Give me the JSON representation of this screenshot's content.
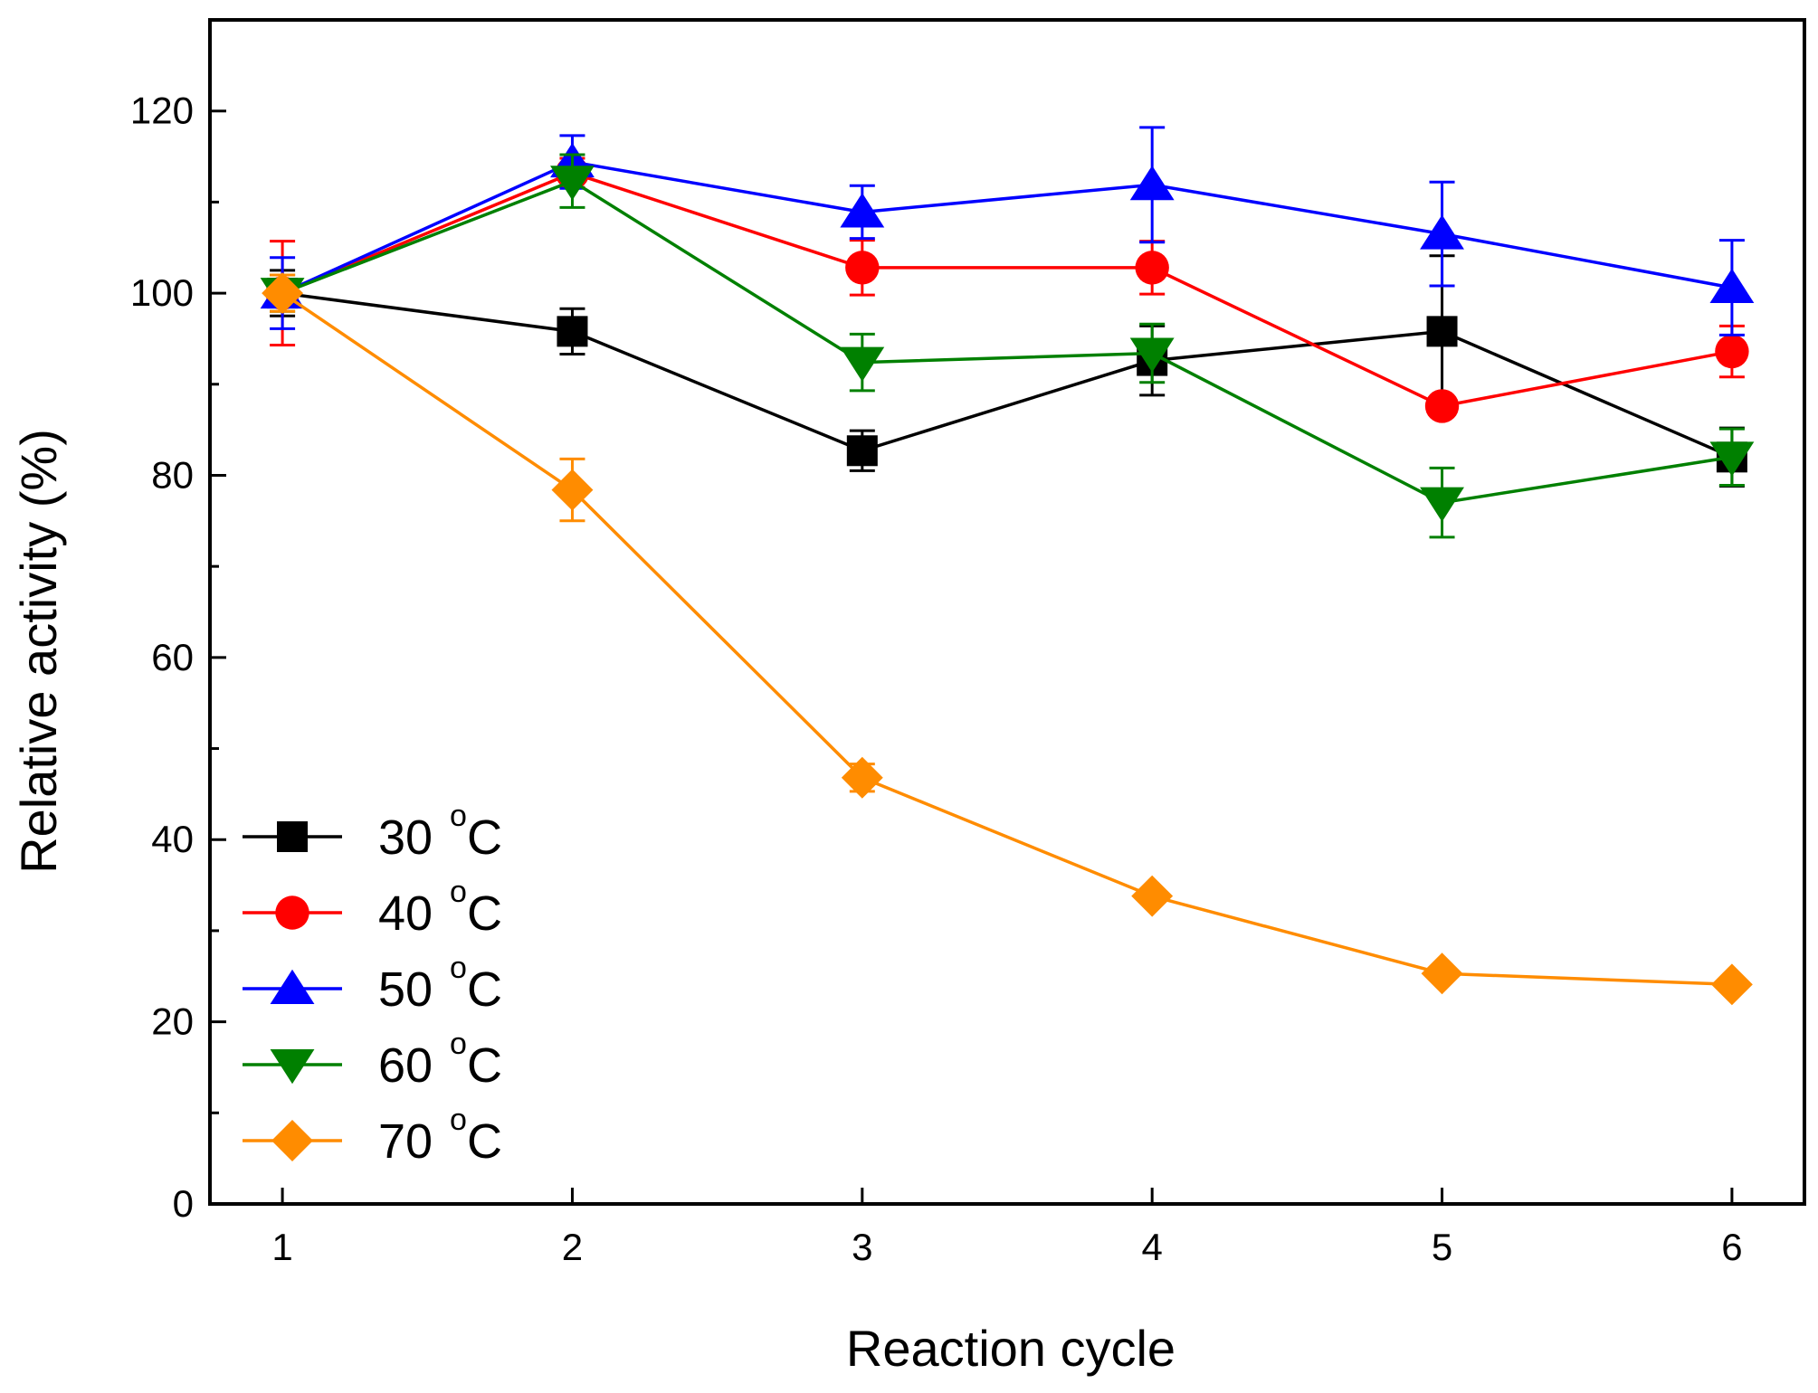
{
  "chart_data": {
    "type": "line",
    "title": "",
    "xlabel": "Reaction cycle",
    "ylabel": "Relative activity (%)",
    "x": [
      1,
      2,
      3,
      4,
      5,
      6
    ],
    "xlim": [
      0.75,
      6.25
    ],
    "ylim": [
      0,
      130
    ],
    "yticks": [
      0,
      20,
      40,
      60,
      80,
      100,
      120
    ],
    "xticks": [
      1,
      2,
      3,
      4,
      5,
      6
    ],
    "x_tick_labels": [
      "1",
      "2",
      "3",
      "4",
      "5",
      "6"
    ],
    "y_tick_labels": [
      "0",
      "20",
      "40",
      "60",
      "80",
      "100",
      "120"
    ],
    "grid": false,
    "legend_position": "bottom-left",
    "series": [
      {
        "name": "30 °C",
        "legend_value": "30",
        "legend_unit": "C",
        "legend_degree": "o",
        "color": "#000000",
        "marker": "square",
        "values": [
          100,
          95.8,
          82.7,
          92.6,
          95.8,
          82.0
        ],
        "errors": [
          2.5,
          2.5,
          2.2,
          3.8,
          8.3,
          3.2
        ]
      },
      {
        "name": "40 °C",
        "legend_value": "40",
        "legend_unit": "C",
        "legend_degree": "o",
        "color": "#ff0000",
        "marker": "circle",
        "values": [
          100,
          113.2,
          102.8,
          102.8,
          87.6,
          93.6
        ],
        "errors": [
          5.7,
          1.6,
          3.0,
          2.9,
          0.2,
          2.8
        ]
      },
      {
        "name": "50 °C",
        "legend_value": "50",
        "legend_unit": "C",
        "legend_degree": "o",
        "color": "#0000ff",
        "marker": "triangle-up",
        "values": [
          100,
          114.4,
          108.9,
          111.9,
          106.5,
          100.6
        ],
        "errors": [
          3.9,
          2.9,
          2.9,
          6.3,
          5.7,
          5.2
        ]
      },
      {
        "name": "60 °C",
        "legend_value": "60",
        "legend_unit": "C",
        "legend_degree": "o",
        "color": "#008000",
        "marker": "triangle-down",
        "values": [
          100,
          112.3,
          92.4,
          93.4,
          77.0,
          82.0
        ],
        "errors": [
          2.0,
          2.9,
          3.1,
          3.2,
          3.8,
          3.1
        ]
      },
      {
        "name": "70 °C",
        "legend_value": "70",
        "legend_unit": "C",
        "legend_degree": "o",
        "color": "#ff8c00",
        "marker": "diamond",
        "values": [
          100,
          78.4,
          46.8,
          33.8,
          25.3,
          24.1
        ],
        "errors": [
          2.0,
          3.4,
          1.5,
          0,
          0,
          0
        ]
      }
    ]
  }
}
